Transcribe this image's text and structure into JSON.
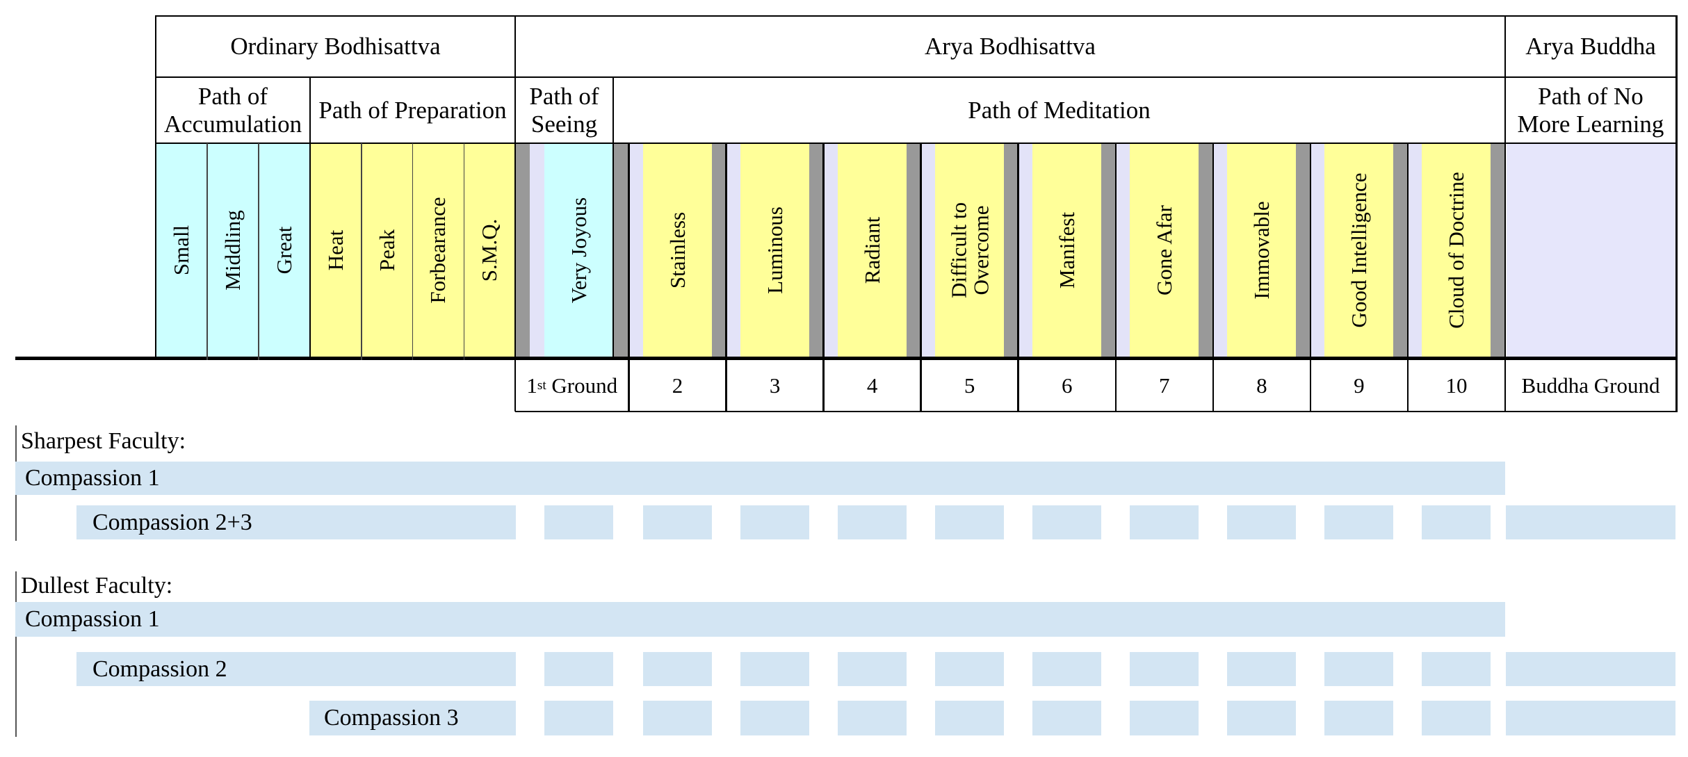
{
  "colors": {
    "stage_cyan": "#ccffff",
    "stage_yellow": "#ffff99",
    "separator_gray": "#999999",
    "separator_lavender": "#e3e3f8",
    "buddha_lavender": "#e6e6fb",
    "bar_blue": "#d3e5f3",
    "border": "#000000"
  },
  "table": {
    "beings": [
      "Ordinary Bodhisattva",
      "Arya Bodhisattva",
      "Arya Buddha"
    ],
    "paths": [
      {
        "lines": [
          "Path of",
          "Accumulation"
        ]
      },
      {
        "lines": [
          "Path of Preparation"
        ]
      },
      {
        "lines": [
          "Path of",
          "Seeing"
        ]
      },
      {
        "lines": [
          "Path of Meditation"
        ]
      },
      {
        "lines": [
          "Path of No",
          "More Learning"
        ]
      }
    ],
    "accumulation_stages": [
      "Small",
      "Middling",
      "Great"
    ],
    "preparation_stages": [
      "Heat",
      "Peak",
      "Forbearance",
      "S.M.Q."
    ],
    "grounds": [
      {
        "num": "1",
        "suffix": "st",
        "label_word": "Ground",
        "name": "Very Joyous"
      },
      {
        "num": "2",
        "name": "Stainless"
      },
      {
        "num": "3",
        "name": "Luminous"
      },
      {
        "num": "4",
        "name": "Radiant"
      },
      {
        "num": "5",
        "name": "Difficult to Overcome",
        "name_lines": [
          "Difficult to",
          "Overcome"
        ]
      },
      {
        "num": "6",
        "name": "Manifest"
      },
      {
        "num": "7",
        "name": "Gone Afar"
      },
      {
        "num": "8",
        "name": "Immovable"
      },
      {
        "num": "9",
        "name": "Good Intelligence"
      },
      {
        "num": "10",
        "name": "Cloud of Doctrine"
      }
    ],
    "buddha_ground_label": "Buddha Ground"
  },
  "faculty_sections": [
    {
      "title": "Sharpest Faculty:",
      "bars": [
        {
          "label": "Compassion 1",
          "form": "continuous"
        },
        {
          "label": "Compassion 2+3",
          "form": "segmented"
        }
      ]
    },
    {
      "title": "Dullest Faculty:",
      "bars": [
        {
          "label": "Compassion 1",
          "form": "continuous"
        },
        {
          "label": "Compassion 2",
          "form": "segmented"
        },
        {
          "label": "Compassion 3",
          "form": "segmented"
        }
      ]
    }
  ]
}
